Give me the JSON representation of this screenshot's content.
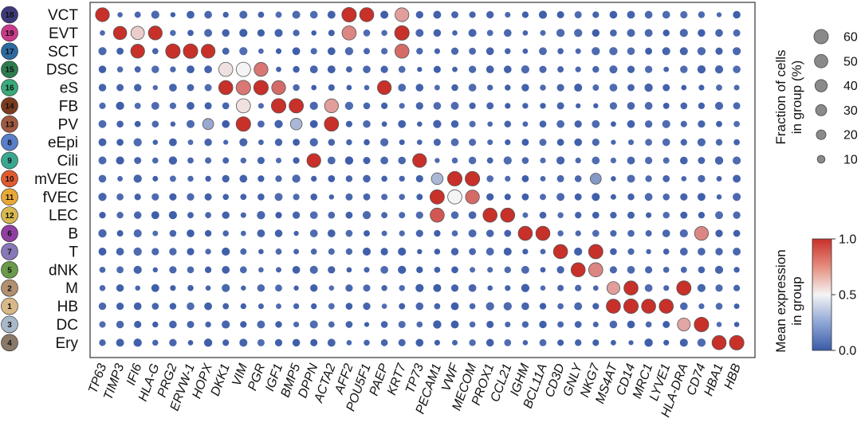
{
  "chart_data": {
    "type": "dotplot",
    "row_labels": [
      "VCT",
      "EVT",
      "SCT",
      "DSC",
      "eS",
      "FB",
      "PV",
      "eEpi",
      "Cili",
      "mVEC",
      "fVEC",
      "LEC",
      "B",
      "T",
      "dNK",
      "M",
      "HB",
      "DC",
      "Ery"
    ],
    "row_ids": [
      "18",
      "19",
      "17",
      "15",
      "16",
      "14",
      "13",
      "8",
      "9",
      "10",
      "11",
      "12",
      "6",
      "7",
      "5",
      "2",
      "1",
      "3",
      "4"
    ],
    "row_colors": [
      "#3d3a7a",
      "#c93a8a",
      "#2d6aa0",
      "#2e7d4f",
      "#3aaa7a",
      "#7a3b1e",
      "#a05a40",
      "#5a7ec8",
      "#3aa890",
      "#e05a30",
      "#e8a838",
      "#d8b850",
      "#9040a0",
      "#8878b8",
      "#6a9a4a",
      "#b09070",
      "#d8b888",
      "#a8b8c8",
      "#8a7868"
    ],
    "genes": [
      "TP63",
      "TIMP3",
      "IFI6",
      "HLA-G",
      "PRG2",
      "ERVW-1",
      "HOPX",
      "DKK1",
      "VIM",
      "PGR",
      "IGF1",
      "BMP5",
      "DPPN",
      "ACTA2",
      "AFF2",
      "POU5F1",
      "PAEP",
      "KRT7",
      "TP73",
      "PECAM1",
      "VWF",
      "MECOM",
      "PROX1",
      "CCL21",
      "IGHM",
      "BCL11A",
      "CD3D",
      "GNLY",
      "NKG7",
      "MS4AT",
      "CD14",
      "MRC1",
      "LYVE1",
      "HLA-DRA",
      "CD74",
      "HBA1",
      "HBB"
    ],
    "highlights": [
      {
        "row": "VCT",
        "gene": "TP63",
        "fraction": 55,
        "expression": 1.0
      },
      {
        "row": "VCT",
        "gene": "AFF2",
        "fraction": 62,
        "expression": 1.0
      },
      {
        "row": "VCT",
        "gene": "POU5F1",
        "fraction": 58,
        "expression": 1.0
      },
      {
        "row": "VCT",
        "gene": "KRT7",
        "fraction": 55,
        "expression": 0.72
      },
      {
        "row": "EVT",
        "gene": "TIMP3",
        "fraction": 50,
        "expression": 1.0
      },
      {
        "row": "EVT",
        "gene": "IFI6",
        "fraction": 50,
        "expression": 0.6
      },
      {
        "row": "EVT",
        "gene": "HLA-G",
        "fraction": 55,
        "expression": 1.0
      },
      {
        "row": "EVT",
        "gene": "AFF2",
        "fraction": 58,
        "expression": 0.78
      },
      {
        "row": "EVT",
        "gene": "KRT7",
        "fraction": 62,
        "expression": 1.0
      },
      {
        "row": "SCT",
        "gene": "IFI6",
        "fraction": 55,
        "expression": 1.0
      },
      {
        "row": "SCT",
        "gene": "PRG2",
        "fraction": 62,
        "expression": 1.0
      },
      {
        "row": "SCT",
        "gene": "ERVW-1",
        "fraction": 62,
        "expression": 1.0
      },
      {
        "row": "SCT",
        "gene": "HOPX",
        "fraction": 55,
        "expression": 1.0
      },
      {
        "row": "SCT",
        "gene": "KRT7",
        "fraction": 58,
        "expression": 0.85
      },
      {
        "row": "DSC",
        "gene": "DKK1",
        "fraction": 58,
        "expression": 0.55
      },
      {
        "row": "DSC",
        "gene": "VIM",
        "fraction": 60,
        "expression": 0.5
      },
      {
        "row": "DSC",
        "gene": "PGR",
        "fraction": 55,
        "expression": 0.82
      },
      {
        "row": "eS",
        "gene": "DKK1",
        "fraction": 58,
        "expression": 1.0
      },
      {
        "row": "eS",
        "gene": "VIM",
        "fraction": 62,
        "expression": 0.82
      },
      {
        "row": "eS",
        "gene": "PGR",
        "fraction": 62,
        "expression": 1.0
      },
      {
        "row": "eS",
        "gene": "IGF1",
        "fraction": 55,
        "expression": 0.85
      },
      {
        "row": "eS",
        "gene": "PAEP",
        "fraction": 55,
        "expression": 1.0
      },
      {
        "row": "FB",
        "gene": "VIM",
        "fraction": 58,
        "expression": 0.55
      },
      {
        "row": "FB",
        "gene": "IGF1",
        "fraction": 62,
        "expression": 1.0
      },
      {
        "row": "FB",
        "gene": "BMP5",
        "fraction": 60,
        "expression": 1.0
      },
      {
        "row": "FB",
        "gene": "ACTA2",
        "fraction": 55,
        "expression": 0.72
      },
      {
        "row": "PV",
        "gene": "HOPX",
        "fraction": 30,
        "expression": 0.25
      },
      {
        "row": "PV",
        "gene": "VIM",
        "fraction": 62,
        "expression": 1.0
      },
      {
        "row": "PV",
        "gene": "BMP5",
        "fraction": 35,
        "expression": 0.3
      },
      {
        "row": "PV",
        "gene": "ACTA2",
        "fraction": 60,
        "expression": 1.0
      },
      {
        "row": "Cili",
        "gene": "DPPN",
        "fraction": 55,
        "expression": 1.0
      },
      {
        "row": "Cili",
        "gene": "TP73",
        "fraction": 55,
        "expression": 1.0
      },
      {
        "row": "mVEC",
        "gene": "PECAM1",
        "fraction": 35,
        "expression": 0.3
      },
      {
        "row": "mVEC",
        "gene": "VWF",
        "fraction": 62,
        "expression": 1.0
      },
      {
        "row": "mVEC",
        "gene": "MECOM",
        "fraction": 62,
        "expression": 1.0
      },
      {
        "row": "mVEC",
        "gene": "NKG7",
        "fraction": 30,
        "expression": 0.2
      },
      {
        "row": "fVEC",
        "gene": "PECAM1",
        "fraction": 60,
        "expression": 1.0
      },
      {
        "row": "fVEC",
        "gene": "VWF",
        "fraction": 58,
        "expression": 0.5
      },
      {
        "row": "fVEC",
        "gene": "MECOM",
        "fraction": 55,
        "expression": 0.85
      },
      {
        "row": "LEC",
        "gene": "PECAM1",
        "fraction": 58,
        "expression": 0.9
      },
      {
        "row": "LEC",
        "gene": "PROX1",
        "fraction": 58,
        "expression": 1.0
      },
      {
        "row": "LEC",
        "gene": "CCL21",
        "fraction": 58,
        "expression": 1.0
      },
      {
        "row": "B",
        "gene": "IGHM",
        "fraction": 58,
        "expression": 1.0
      },
      {
        "row": "B",
        "gene": "BCL11A",
        "fraction": 58,
        "expression": 1.0
      },
      {
        "row": "B",
        "gene": "CD74",
        "fraction": 55,
        "expression": 0.78
      },
      {
        "row": "T",
        "gene": "CD3D",
        "fraction": 58,
        "expression": 1.0
      },
      {
        "row": "T",
        "gene": "NKG7",
        "fraction": 60,
        "expression": 1.0
      },
      {
        "row": "dNK",
        "gene": "GNLY",
        "fraction": 58,
        "expression": 1.0
      },
      {
        "row": "dNK",
        "gene": "NKG7",
        "fraction": 58,
        "expression": 0.78
      },
      {
        "row": "M",
        "gene": "MS4AT",
        "fraction": 45,
        "expression": 0.72
      },
      {
        "row": "M",
        "gene": "CD14",
        "fraction": 58,
        "expression": 1.0
      },
      {
        "row": "M",
        "gene": "HLA-DRA",
        "fraction": 60,
        "expression": 1.0
      },
      {
        "row": "HB",
        "gene": "MS4AT",
        "fraction": 58,
        "expression": 1.0
      },
      {
        "row": "HB",
        "gene": "CD14",
        "fraction": 62,
        "expression": 1.0
      },
      {
        "row": "HB",
        "gene": "MRC1",
        "fraction": 58,
        "expression": 1.0
      },
      {
        "row": "HB",
        "gene": "LYVE1",
        "fraction": 58,
        "expression": 1.0
      },
      {
        "row": "DC",
        "gene": "HLA-DRA",
        "fraction": 45,
        "expression": 0.7
      },
      {
        "row": "DC",
        "gene": "CD74",
        "fraction": 62,
        "expression": 1.0
      },
      {
        "row": "Ery",
        "gene": "HBA1",
        "fraction": 58,
        "expression": 1.0
      },
      {
        "row": "Ery",
        "gene": "HBB",
        "fraction": 62,
        "expression": 1.0
      }
    ],
    "size_legend": {
      "title_lines": [
        "Fraction of cells",
        "in group (%)"
      ],
      "values": [
        60,
        50,
        40,
        30,
        20,
        10
      ]
    },
    "color_legend": {
      "title_lines": [
        "Mean expression",
        "in group"
      ],
      "ticks": [
        "1.0",
        "0.5",
        "0.0"
      ],
      "range": [
        0,
        1
      ],
      "colormap": [
        "#3b5ba8",
        "#f4f4f4",
        "#c8302a"
      ]
    }
  }
}
